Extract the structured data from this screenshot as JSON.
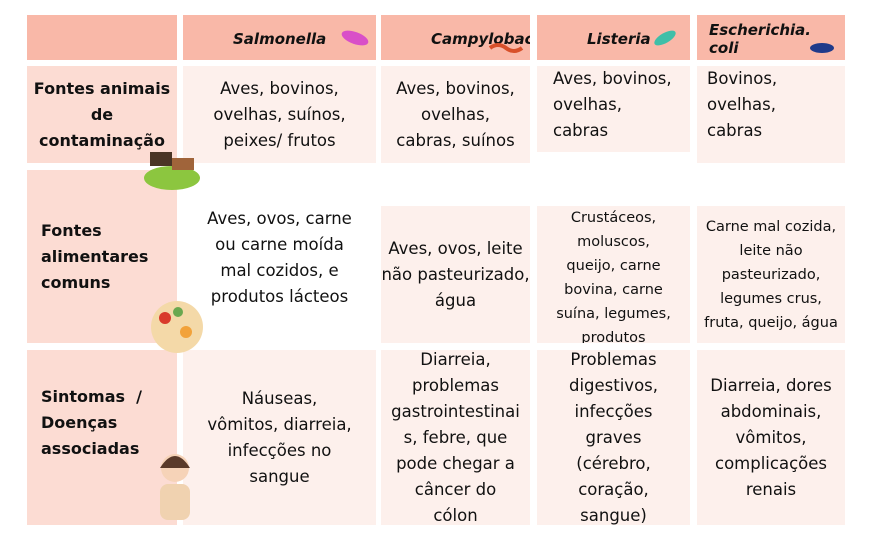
{
  "table": {
    "columns": [
      "Salmonella",
      "Campylobacter",
      "Listeria",
      "Escherichia. coli"
    ],
    "rows": [
      {
        "label": [
          "Fontes animais",
          "de",
          "contaminação"
        ],
        "cells": [
          [
            "Aves, bovinos,",
            "ovelhas, suínos,",
            "peixes/ frutos"
          ],
          [
            "Aves, bovinos,",
            "ovelhas,",
            "cabras, suínos"
          ],
          [
            "Aves, bovinos,",
            "ovelhas,",
            "cabras"
          ],
          [
            "Bovinos,",
            "ovelhas,",
            "cabras"
          ]
        ]
      },
      {
        "label": [
          "Fontes",
          "alimentares",
          "comuns"
        ],
        "cells": [
          [
            "Aves, ovos, carne",
            "ou carne moída",
            "mal cozidos, e",
            "produtos lácteos"
          ],
          [
            "Aves, ovos, leite",
            "não pasteurizado,",
            "água"
          ],
          [
            "Crustáceos,",
            "moluscos,",
            "queijo, carne",
            "bovina, carne",
            "suína, legumes,",
            "produtos"
          ],
          [
            "Carne mal cozida,",
            "leite não",
            "pasteurizado,",
            "legumes crus,",
            "fruta, queijo, água"
          ]
        ]
      },
      {
        "label": [
          "Sintomas  /",
          "Doenças",
          "associadas"
        ],
        "cells": [
          [
            "Náuseas,",
            "vômitos, diarreia,",
            "infecções no",
            "sangue"
          ],
          [
            "Diarreia,",
            "problemas",
            "gastrointestinai",
            "s, febre, que",
            "pode chegar a",
            "câncer do",
            "cólon"
          ],
          [
            "Problemas",
            "digestivos,",
            "infecções",
            "graves",
            "(cérebro,",
            "coração,",
            "sangue)"
          ],
          [
            "Diarreia, dores",
            "abdominais,",
            "vômitos,",
            "complicações",
            "renais"
          ]
        ]
      }
    ]
  }
}
